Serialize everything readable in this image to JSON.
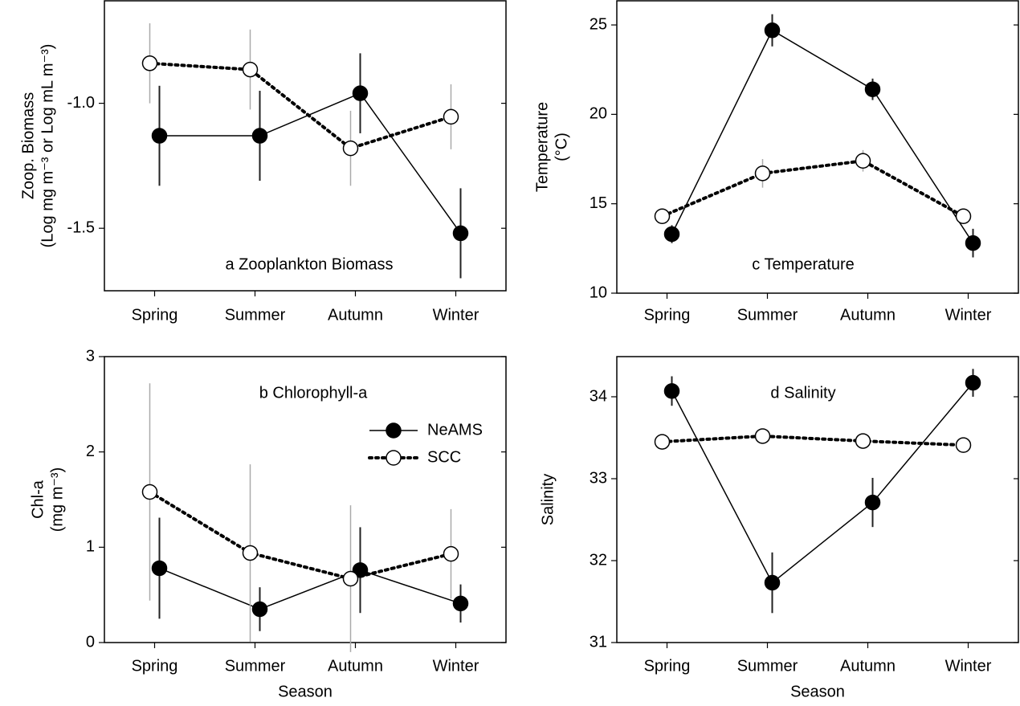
{
  "chart_data": [
    {
      "type": "line",
      "annotation": "a   Zooplankton Biomass",
      "ylabel": "Zoop. Biomass",
      "ylabel_units": "(Log mg m⁻³ or Log mL m⁻³)",
      "categories": [
        "Spring",
        "Summer",
        "Autumn",
        "Winter"
      ],
      "series": [
        {
          "name": "NeAMS",
          "color": "#000000",
          "marker": "filled",
          "line_style": "solid",
          "values": [
            -1.13,
            -1.13,
            -0.96,
            -1.52
          ],
          "errors": [
            0.2,
            0.18,
            0.16,
            0.18
          ]
        },
        {
          "name": "SCC",
          "color": "#000000",
          "marker": "open",
          "line_style": "dotted",
          "values": [
            -0.84,
            -0.865,
            -1.18,
            -1.054
          ],
          "errors": [
            0.16,
            0.16,
            0.15,
            0.13
          ]
        }
      ],
      "ylim": [
        -1.75,
        -0.59
      ],
      "yticks": [
        {
          "value": -1.5,
          "label": "-1.5"
        },
        {
          "value": -1,
          "label": "-1.0"
        }
      ]
    },
    {
      "type": "line",
      "annotation": "c   Temperature",
      "ylabel": "Temperature",
      "ylabel_units": "(°C)",
      "categories": [
        "Spring",
        "Summer",
        "Autumn",
        "Winter"
      ],
      "series": [
        {
          "name": "NeAMS",
          "color": "#000000",
          "marker": "filled",
          "line_style": "solid",
          "values": [
            13.3,
            24.7,
            21.4,
            12.8
          ],
          "errors": [
            0.5,
            0.9,
            0.6,
            0.8
          ]
        },
        {
          "name": "SCC",
          "color": "#000000",
          "marker": "open",
          "line_style": "dotted",
          "values": [
            14.3,
            16.7,
            17.4,
            14.3
          ],
          "errors": [
            0.4,
            0.8,
            0.6,
            0.3
          ]
        }
      ],
      "ylim": [
        10,
        26.35
      ],
      "yticks": [
        10,
        15,
        20,
        25
      ]
    },
    {
      "type": "line",
      "annotation": "b   Chlorophyll-a",
      "ylabel": "Chl-a",
      "ylabel_units": "(mg m⁻³)",
      "xlabel": "Season",
      "legend": "upper right",
      "categories": [
        "Spring",
        "Summer",
        "Autumn",
        "Winter"
      ],
      "series": [
        {
          "name": "NeAMS",
          "color": "#000000",
          "marker": "filled",
          "line_style": "solid",
          "values": [
            0.78,
            0.35,
            0.76,
            0.41
          ],
          "errors": [
            0.53,
            0.23,
            0.45,
            0.2
          ]
        },
        {
          "name": "SCC",
          "color": "#000000",
          "marker": "open",
          "line_style": "dotted",
          "values": [
            1.58,
            0.94,
            0.67,
            0.93
          ],
          "errors": [
            1.14,
            0.93,
            0.77,
            0.47
          ]
        }
      ],
      "ylim": [
        0,
        3
      ],
      "yticks": [
        0,
        1,
        2,
        3
      ]
    },
    {
      "type": "line",
      "annotation": "d   Salinity",
      "ylabel": "Salinity",
      "xlabel": "Season",
      "categories": [
        "Spring",
        "Summer",
        "Autumn",
        "Winter"
      ],
      "series": [
        {
          "name": "NeAMS",
          "color": "#000000",
          "marker": "filled",
          "line_style": "solid",
          "values": [
            34.07,
            31.73,
            32.71,
            34.17
          ],
          "errors": [
            0.18,
            0.37,
            0.3,
            0.17
          ]
        },
        {
          "name": "SCC",
          "color": "#000000",
          "marker": "open",
          "line_style": "dotted",
          "values": [
            33.45,
            33.52,
            33.46,
            33.41
          ],
          "errors": [
            0.05,
            0.05,
            0.05,
            0.05
          ]
        }
      ],
      "ylim": [
        31,
        34.49
      ],
      "yticks": [
        31,
        32,
        33,
        34
      ]
    }
  ]
}
